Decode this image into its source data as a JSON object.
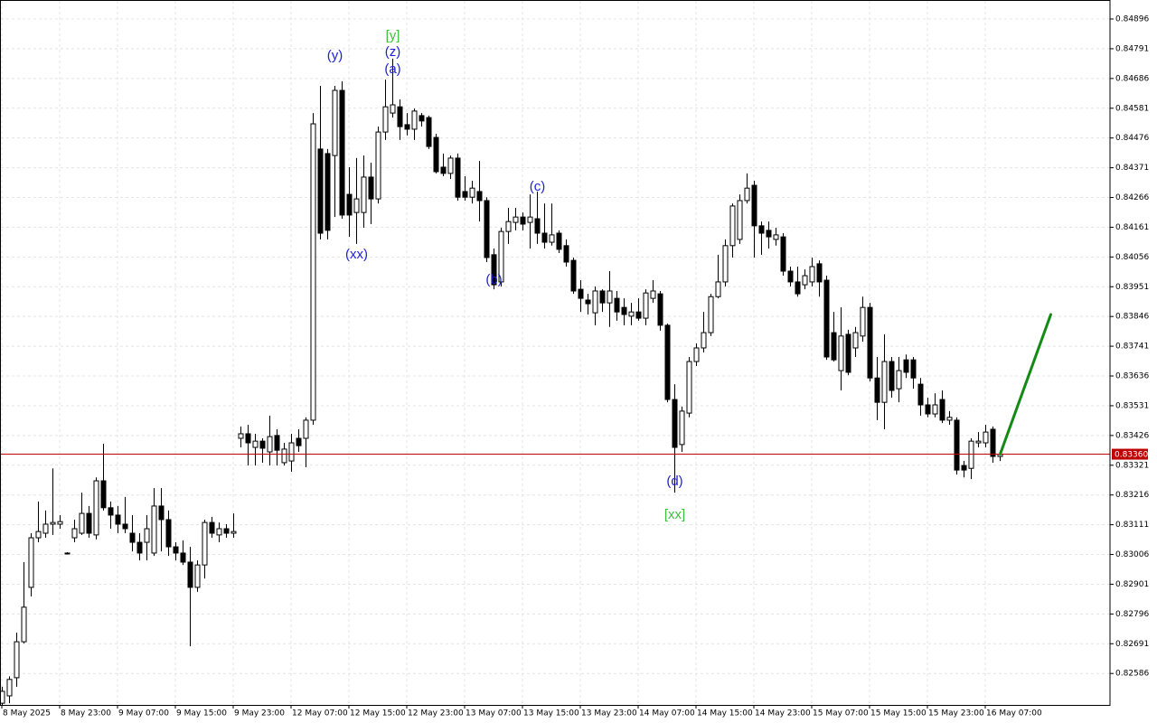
{
  "chart_data": {
    "type": "candlestick",
    "categories": [
      "8 May 2025",
      null,
      null,
      null,
      null,
      null,
      null,
      null,
      "8 May 23:00",
      null,
      null,
      null,
      null,
      null,
      null,
      null,
      "9 May 07:00",
      null,
      null,
      null,
      null,
      null,
      null,
      null,
      "9 May 15:00",
      null,
      null,
      null,
      null,
      null,
      null,
      null,
      "9 May 23:00",
      null,
      null,
      null,
      null,
      null,
      null,
      null,
      "12 May 07:00",
      null,
      null,
      null,
      null,
      null,
      null,
      null,
      "12 May 15:00",
      null,
      null,
      null,
      null,
      null,
      null,
      null,
      "12 May 23:00",
      null,
      null,
      null,
      null,
      null,
      null,
      null,
      "13 May 07:00",
      null,
      null,
      null,
      null,
      null,
      null,
      null,
      "13 May 15:00",
      null,
      null,
      null,
      null,
      null,
      null,
      null,
      "13 May 23:00",
      null,
      null,
      null,
      null,
      null,
      null,
      null,
      "14 May 07:00",
      null,
      null,
      null,
      null,
      null,
      null,
      null,
      "14 May 15:00",
      null,
      null,
      null,
      null,
      null,
      null,
      null,
      "14 May 23:00",
      null,
      null,
      null,
      null,
      null,
      null,
      null,
      "15 May 07:00",
      null,
      null,
      null,
      null,
      null,
      null,
      null,
      "15 May 15:00",
      null,
      null,
      null,
      null,
      null,
      null,
      null,
      "15 May 23:00",
      null,
      null,
      null,
      null,
      null,
      null,
      null,
      "16 May 07:00",
      null,
      null
    ],
    "open": [
      0.82481,
      0.82507,
      0.82571,
      0.82698,
      0.8289,
      0.83065,
      0.83081,
      0.83113,
      0.83113,
      0.83011,
      0.83065,
      0.83081,
      0.83151,
      0.83075,
      0.83266,
      0.83171,
      0.83145,
      0.83113,
      0.83081,
      0.83049,
      0.83049,
      0.83011,
      0.83177,
      0.83129,
      0.83033,
      0.83011,
      0.82979,
      0.8289,
      0.82969,
      0.83119,
      0.83075,
      0.83097,
      0.83081,
      0.83416,
      0.83432,
      0.83384,
      0.83406,
      0.83368,
      0.83426,
      0.8333,
      0.83336,
      0.83416,
      0.83416,
      0.8348,
      0.84437,
      0.84421,
      0.84414,
      0.84644,
      0.84277,
      0.84213,
      0.84213,
      0.84338,
      0.84261,
      0.84497,
      0.84564,
      0.84586,
      0.84523,
      0.84507,
      0.84555,
      0.84548,
      0.84478,
      0.84373,
      0.84351,
      0.84405,
      0.84287,
      0.84267,
      0.84287,
      0.84255,
      0.84064,
      0.83968,
      0.84146,
      0.84178,
      0.84197,
      0.84178,
      0.84191,
      0.8414,
      0.84108,
      0.8414,
      0.84096,
      0.84044,
      0.83942,
      0.83904,
      0.83859,
      0.83936,
      0.83894,
      0.8391,
      0.83878,
      0.83847,
      0.83862,
      0.8384,
      0.8391,
      0.83926,
      0.83815,
      0.83553,
      0.83394,
      0.83505,
      0.83687,
      0.83735,
      0.83789,
      0.83916,
      0.83968,
      0.84096,
      0.84118,
      0.84255,
      0.84309,
      0.84166,
      0.8415,
      0.84118,
      0.84127,
      0.84006,
      0.83968,
      0.83958,
      0.83968,
      0.84032,
      0.83974,
      0.83789,
      0.83655,
      0.83783,
      0.83735,
      0.83777,
      0.83878,
      0.83629,
      0.83543,
      0.83687,
      0.83591,
      0.83693,
      0.83693,
      0.83607,
      0.83534,
      0.83502,
      0.83553,
      0.8348,
      0.8348,
      0.8332,
      0.8331,
      0.834,
      0.834,
      0.83448,
      0.83352
    ],
    "high": [
      0.82539,
      0.82576,
      0.8273,
      0.82979,
      0.83081,
      0.83193,
      0.83161,
      0.8331,
      0.83145,
      0.83014,
      0.83129,
      0.83224,
      0.83177,
      0.83278,
      0.83397,
      0.83193,
      0.83177,
      0.83209,
      0.83145,
      0.83081,
      0.83145,
      0.8324,
      0.8324,
      0.83161,
      0.83049,
      0.83055,
      0.83033,
      0.82985,
      0.83129,
      0.83139,
      0.83119,
      0.83113,
      0.83151,
      0.83458,
      0.83464,
      0.83432,
      0.83416,
      0.83496,
      0.83448,
      0.834,
      0.83432,
      0.83448,
      0.8349,
      0.84564,
      0.8466,
      0.84437,
      0.8466,
      0.84676,
      0.84373,
      0.84405,
      0.84414,
      0.84389,
      0.84516,
      0.84682,
      0.84756,
      0.84612,
      0.84564,
      0.8458,
      0.84564,
      0.84555,
      0.84491,
      0.84421,
      0.84414,
      0.84421,
      0.84341,
      0.84325,
      0.84395,
      0.84267,
      0.84086,
      0.84159,
      0.84229,
      0.84229,
      0.84213,
      0.84277,
      0.84287,
      0.84245,
      0.84245,
      0.8415,
      0.84118,
      0.84054,
      0.83974,
      0.83926,
      0.83952,
      0.83942,
      0.84006,
      0.83936,
      0.8391,
      0.83894,
      0.8391,
      0.83942,
      0.83974,
      0.83936,
      0.83821,
      0.83607,
      0.83528,
      0.83703,
      0.83751,
      0.83862,
      0.83926,
      0.84064,
      0.84118,
      0.84245,
      0.84277,
      0.84351,
      0.84325,
      0.84181,
      0.84181,
      0.84159,
      0.8414,
      0.84022,
      0.84022,
      0.84012,
      0.84054,
      0.84044,
      0.8399,
      0.83862,
      0.83878,
      0.83799,
      0.83809,
      0.83916,
      0.83894,
      0.83703,
      0.83783,
      0.83703,
      0.83703,
      0.83712,
      0.83703,
      0.83629,
      0.83559,
      0.83575,
      0.83585,
      0.83512,
      0.8349,
      0.83336,
      0.83416,
      0.83438,
      0.83464,
      0.83458,
      0.83368
    ],
    "low": [
      0.82475,
      0.82481,
      0.82539,
      0.82692,
      0.82858,
      0.83049,
      0.83065,
      0.83075,
      0.83097,
      0.83008,
      0.83049,
      0.83075,
      0.83065,
      0.83059,
      0.83161,
      0.83097,
      0.83081,
      0.83081,
      0.83017,
      0.82985,
      0.82985,
      0.83001,
      0.83017,
      0.83001,
      0.82985,
      0.82969,
      0.82682,
      0.82874,
      0.82921,
      0.83065,
      0.83049,
      0.83065,
      0.83065,
      0.83384,
      0.8332,
      0.8332,
      0.8333,
      0.8332,
      0.8332,
      0.8332,
      0.83298,
      0.83368,
      0.83314,
      0.83464,
      0.84118,
      0.84118,
      0.84197,
      0.84191,
      0.84127,
      0.84102,
      0.84159,
      0.84172,
      0.84245,
      0.84469,
      0.84548,
      0.84469,
      0.84485,
      0.84469,
      0.84516,
      0.84437,
      0.84351,
      0.84341,
      0.84331,
      0.84255,
      0.84255,
      0.84245,
      0.84181,
      0.84038,
      0.83942,
      0.83952,
      0.84102,
      0.8415,
      0.8415,
      0.84086,
      0.84102,
      0.84086,
      0.84096,
      0.8407,
      0.84022,
      0.83926,
      0.83862,
      0.83853,
      0.83815,
      0.83862,
      0.83809,
      0.83831,
      0.83815,
      0.83815,
      0.83831,
      0.83815,
      0.83894,
      0.83796,
      0.83543,
      0.83224,
      0.83368,
      0.8349,
      0.83671,
      0.83719,
      0.83777,
      0.8391,
      0.83952,
      0.84054,
      0.84102,
      0.84245,
      0.84054,
      0.84064,
      0.84086,
      0.84096,
      0.8399,
      0.83952,
      0.83916,
      0.83942,
      0.83952,
      0.83916,
      0.83693,
      0.83687,
      0.83585,
      0.83639,
      0.83703,
      0.83757,
      0.83617,
      0.8348,
      0.83448,
      0.83559,
      0.83543,
      0.83629,
      0.83591,
      0.83496,
      0.8349,
      0.8349,
      0.8347,
      0.83464,
      0.83288,
      0.83278,
      0.83272,
      0.83384,
      0.83384,
      0.8333,
      0.83336
    ],
    "close": [
      0.82523,
      0.82565,
      0.82698,
      0.8282,
      0.83065,
      0.83087,
      0.83113,
      0.83119,
      0.83122,
      0.83011,
      0.83097,
      0.83151,
      0.83081,
      0.83266,
      0.83171,
      0.83145,
      0.83113,
      0.83097,
      0.83049,
      0.83011,
      0.83097,
      0.83177,
      0.83129,
      0.83033,
      0.83011,
      0.82979,
      0.8289,
      0.82969,
      0.83119,
      0.83081,
      0.83097,
      0.83081,
      0.83087,
      0.83432,
      0.834,
      0.83406,
      0.83381,
      0.83422,
      0.83374,
      0.83378,
      0.834,
      0.8339,
      0.8348,
      0.84526,
      0.8414,
      0.8415,
      0.84644,
      0.84204,
      0.84204,
      0.84261,
      0.84338,
      0.84261,
      0.84497,
      0.84586,
      0.84593,
      0.84516,
      0.84507,
      0.84571,
      0.84536,
      0.84446,
      0.84357,
      0.84351,
      0.84405,
      0.84267,
      0.84267,
      0.84299,
      0.84255,
      0.84054,
      0.83958,
      0.84146,
      0.84181,
      0.84197,
      0.84172,
      0.84197,
      0.8414,
      0.84108,
      0.84134,
      0.84083,
      0.84038,
      0.83936,
      0.8391,
      0.83891,
      0.83936,
      0.83894,
      0.83936,
      0.83862,
      0.83853,
      0.83862,
      0.8384,
      0.83929,
      0.83936,
      0.83815,
      0.83553,
      0.83384,
      0.83512,
      0.83687,
      0.83735,
      0.83789,
      0.83916,
      0.83968,
      0.84096,
      0.84236,
      0.84255,
      0.84299,
      0.84166,
      0.8414,
      0.84127,
      0.84134,
      0.84006,
      0.83968,
      0.83926,
      0.8399,
      0.84022,
      0.83968,
      0.83703,
      0.83693,
      0.83777,
      0.83649,
      0.83789,
      0.83878,
      0.83629,
      0.83543,
      0.83687,
      0.83585,
      0.83655,
      0.83649,
      0.83629,
      0.83534,
      0.83502,
      0.83534,
      0.8348,
      0.8349,
      0.83304,
      0.83304,
      0.83406,
      0.83406,
      0.83438,
      0.83352,
      0.8336
    ],
    "up_color": "#ffffff",
    "down_color": "#000000",
    "ylim": [
      0.82475,
      0.84963
    ],
    "yticks": [
      0.82586,
      0.82691,
      0.82796,
      0.82901,
      0.83006,
      0.83111,
      0.83216,
      0.83321,
      0.83426,
      0.83531,
      0.83636,
      0.83741,
      0.83846,
      0.83951,
      0.84056,
      0.84161,
      0.84266,
      0.84371,
      0.84476,
      0.84581,
      0.84686,
      0.84791,
      0.84896
    ],
    "grid": true,
    "current_price": {
      "value": 0.8336,
      "label": "0.83360",
      "color": "#c00000"
    },
    "projection": {
      "color": "#138a13",
      "x": [
        138,
        145
      ],
      "values": [
        0.8336,
        0.83853
      ]
    },
    "annotations": [
      {
        "text": "(y)",
        "color": "#1f1fd6",
        "x": 46,
        "y": 0.84765
      },
      {
        "text": "[y]",
        "color": "#3cbf3c",
        "x": 54,
        "y": 0.84835
      },
      {
        "text": "(z)",
        "color": "#1f1fd6",
        "x": 54,
        "y": 0.84778
      },
      {
        "text": "(a)",
        "color": "#1f1fd6",
        "x": 54,
        "y": 0.84717
      },
      {
        "text": "(xx)",
        "color": "#1f1fd6",
        "x": 49,
        "y": 0.84063
      },
      {
        "text": "(b)",
        "color": "#1f1fd6",
        "x": 68,
        "y": 0.83974
      },
      {
        "text": "(c)",
        "color": "#1f1fd6",
        "x": 74,
        "y": 0.84303
      },
      {
        "text": "(d)",
        "color": "#1f1fd6",
        "x": 93,
        "y": 0.83263
      },
      {
        "text": "[xx]",
        "color": "#3cbf3c",
        "x": 93,
        "y": 0.83145
      }
    ]
  }
}
